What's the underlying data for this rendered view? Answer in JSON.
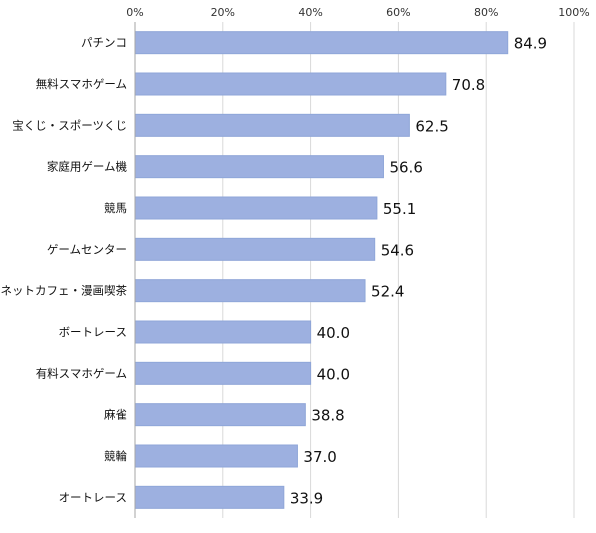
{
  "chart_data": {
    "type": "bar",
    "orientation": "horizontal",
    "categories": [
      "パチンコ",
      "無料スマホゲーム",
      "宝くじ・スポーツくじ",
      "家庭用ゲーム機",
      "競馬",
      "ゲームセンター",
      "ネットカフェ・漫画喫茶",
      "ボートレース",
      "有料スマホゲーム",
      "麻雀",
      "競輪",
      "オートレース"
    ],
    "values": [
      84.9,
      70.8,
      62.5,
      56.6,
      55.1,
      54.6,
      52.4,
      40.0,
      40.0,
      38.8,
      37.0,
      33.9
    ],
    "value_labels": [
      "84.9",
      "70.8",
      "62.5",
      "56.6",
      "55.1",
      "54.6",
      "52.4",
      "40.0",
      "40.0",
      "38.8",
      "37.0",
      "33.9"
    ],
    "xticks": [
      0,
      20,
      40,
      60,
      80,
      100
    ],
    "xtick_labels": [
      "0%",
      "20%",
      "40%",
      "60%",
      "80%",
      "100%"
    ],
    "xlim": [
      0,
      100
    ],
    "axis_position": "top",
    "grid": true,
    "bar_color": "#9db0e0",
    "title": "",
    "xlabel": "",
    "ylabel": ""
  }
}
